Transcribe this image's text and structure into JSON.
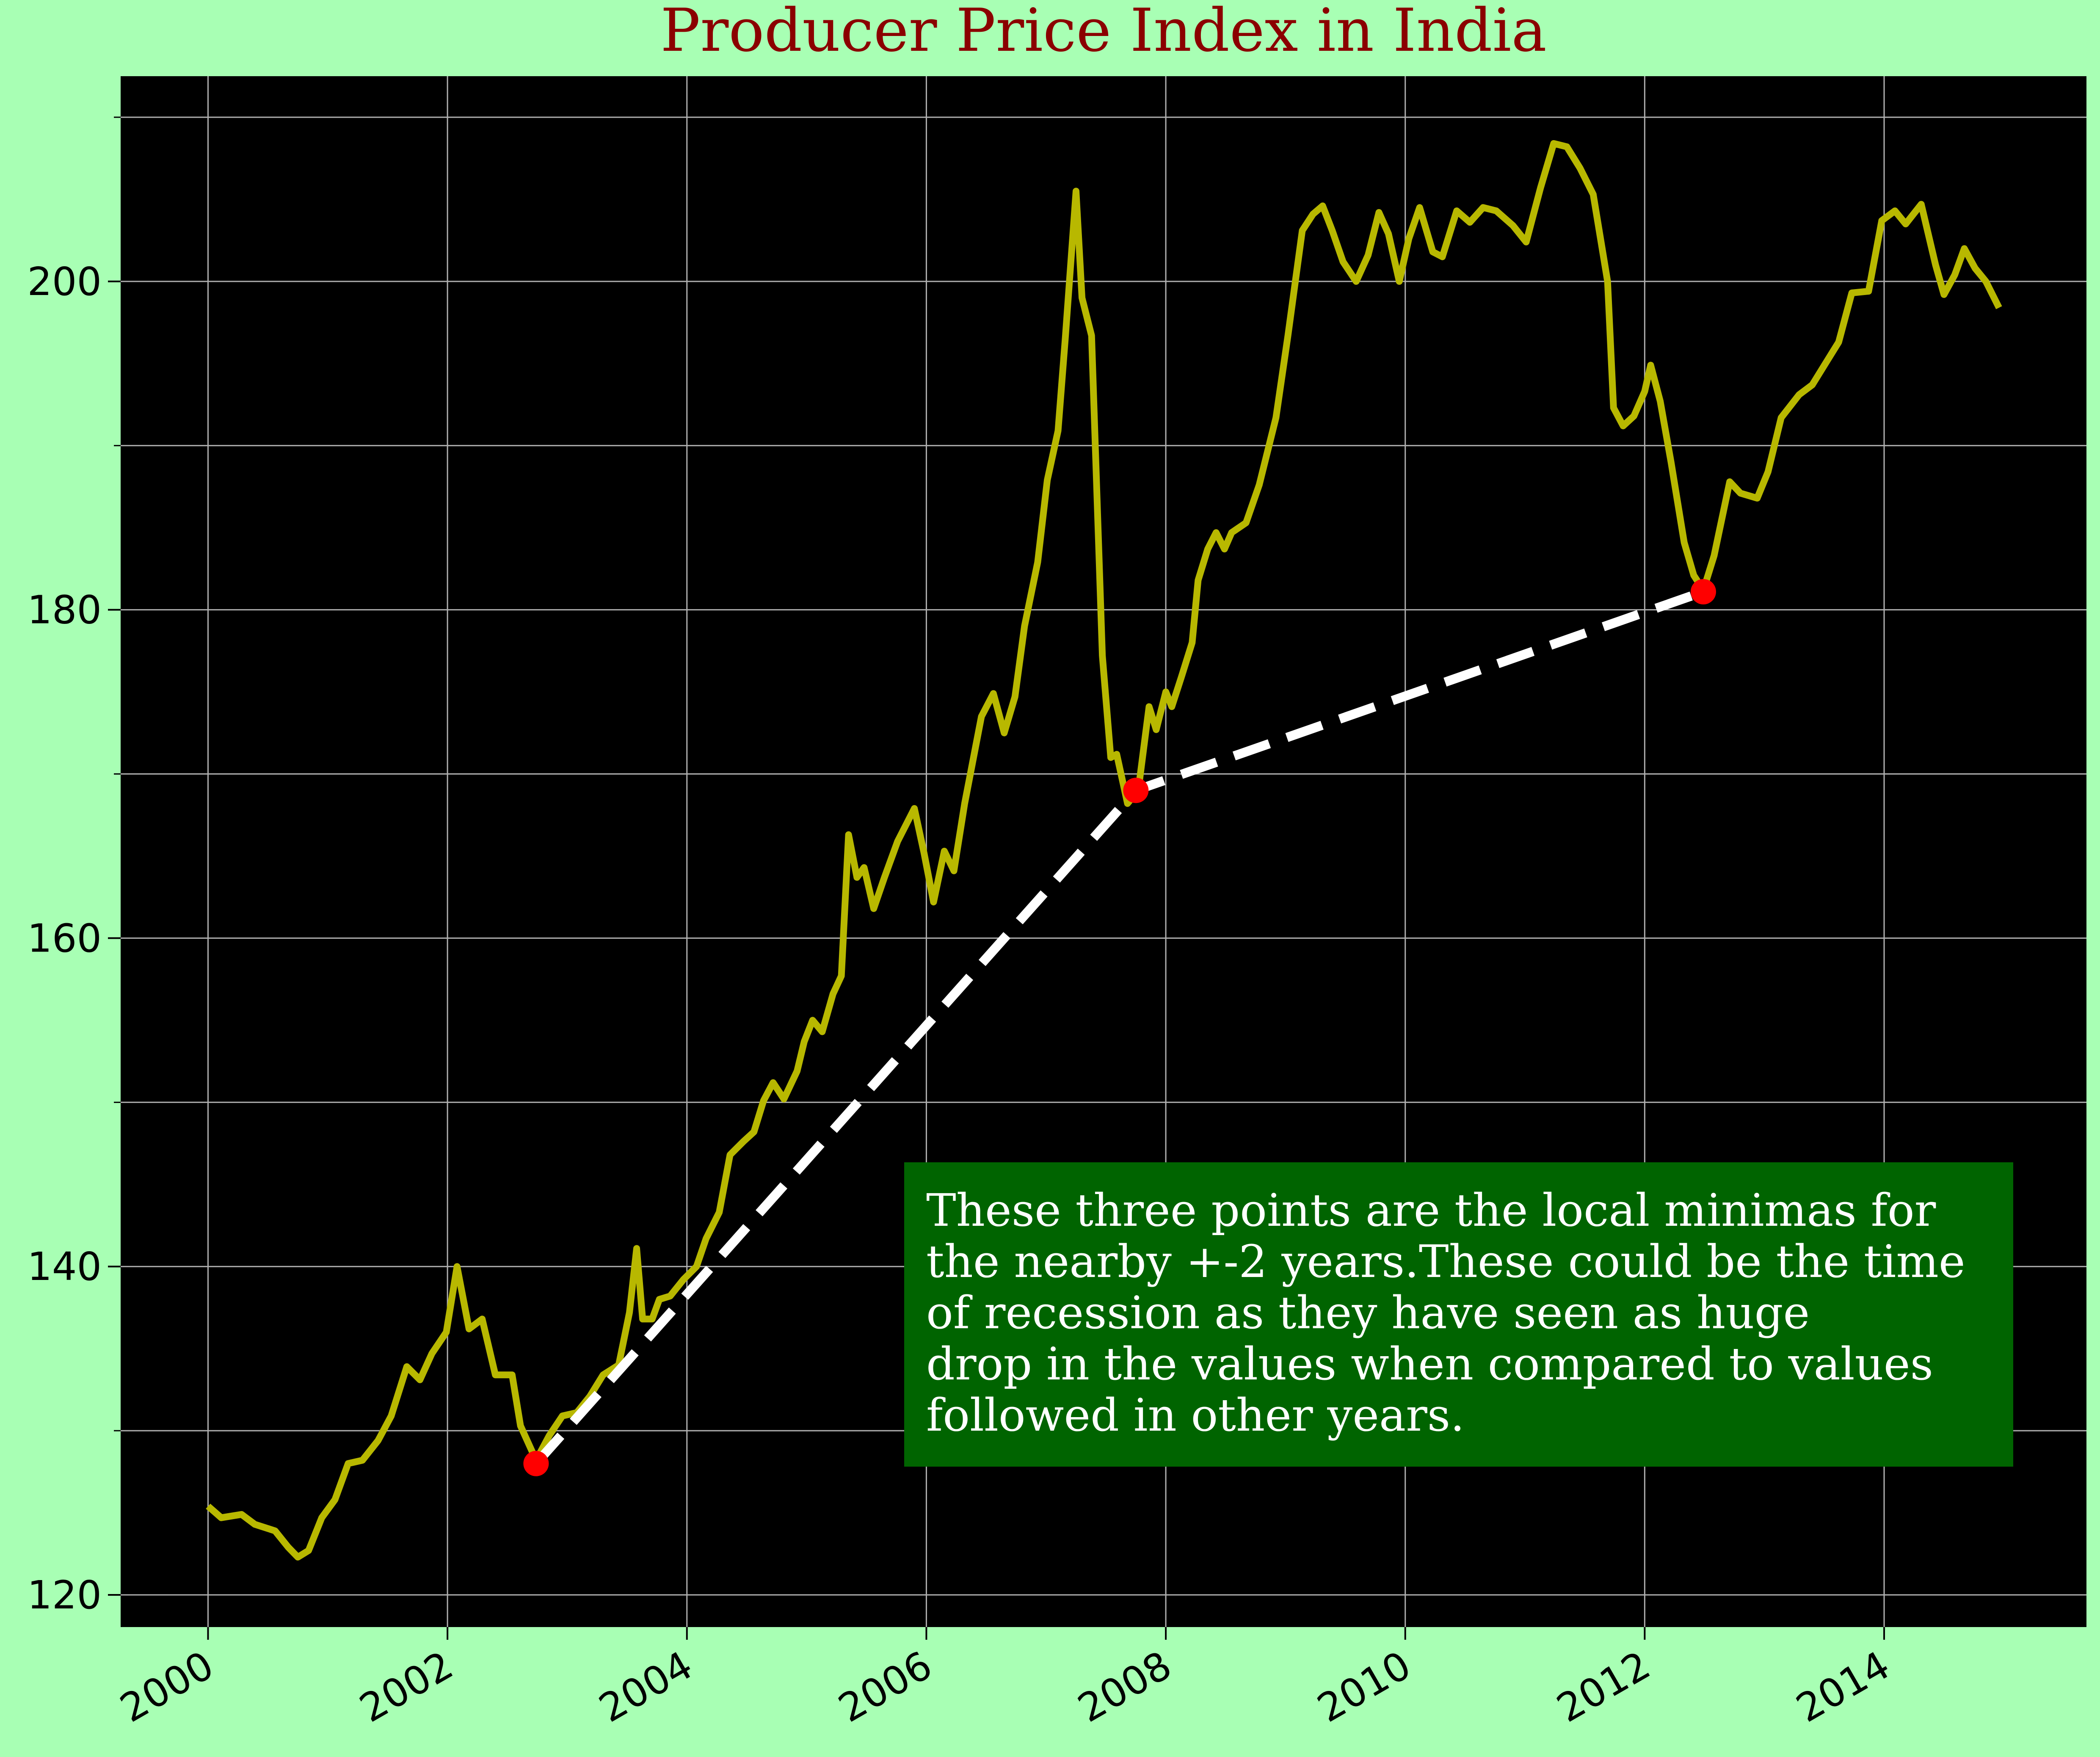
{
  "chart_data": {
    "type": "line",
    "title": "Producer Price Index in India",
    "x": [
      2000.0,
      2000.11,
      2000.28,
      2000.39,
      2000.56,
      2000.67,
      2000.75,
      2000.84,
      2000.95,
      2001.06,
      2001.17,
      2001.29,
      2001.42,
      2001.53,
      2001.66,
      2001.77,
      2001.87,
      2001.99,
      2002.08,
      2002.18,
      2002.29,
      2002.4,
      2002.54,
      2002.61,
      2002.74,
      2002.85,
      2002.96,
      2003.08,
      2003.19,
      2003.3,
      2003.43,
      2003.52,
      2003.58,
      2003.63,
      2003.71,
      2003.77,
      2003.86,
      2003.97,
      2004.08,
      2004.16,
      2004.27,
      2004.36,
      2004.47,
      2004.56,
      2004.64,
      2004.72,
      2004.81,
      2004.92,
      2004.98,
      2005.05,
      2005.13,
      2005.22,
      2005.29,
      2005.35,
      2005.42,
      2005.48,
      2005.56,
      2005.65,
      2005.76,
      2005.9,
      2005.98,
      2006.06,
      2006.15,
      2006.23,
      2006.32,
      2006.46,
      2006.56,
      2006.65,
      2006.74,
      2006.82,
      2006.93,
      2007.01,
      2007.1,
      2007.16,
      2007.25,
      2007.3,
      2007.38,
      2007.47,
      2007.54,
      2007.59,
      2007.68,
      2007.77,
      2007.86,
      2007.92,
      2008.0,
      2008.05,
      2008.13,
      2008.22,
      2008.27,
      2008.35,
      2008.42,
      2008.49,
      2008.55,
      2008.67,
      2008.78,
      2008.92,
      2009.02,
      2009.14,
      2009.23,
      2009.31,
      2009.39,
      2009.48,
      2009.59,
      2009.69,
      2009.78,
      2009.86,
      2009.95,
      2010.03,
      2010.12,
      2010.23,
      2010.31,
      2010.43,
      2010.54,
      2010.65,
      2010.76,
      2010.9,
      2011.01,
      2011.13,
      2011.24,
      2011.35,
      2011.46,
      2011.57,
      2011.69,
      2011.74,
      2011.82,
      2011.91,
      2012.0,
      2012.05,
      2012.13,
      2012.22,
      2012.33,
      2012.41,
      2012.49,
      2012.58,
      2012.71,
      2012.8,
      2012.94,
      2013.03,
      2013.14,
      2013.29,
      2013.4,
      2013.51,
      2013.62,
      2013.73,
      2013.87,
      2013.98,
      2014.09,
      2014.18,
      2014.31,
      2014.43,
      2014.5,
      2014.59,
      2014.67,
      2014.76,
      2014.85,
      2014.96
    ],
    "series": [
      {
        "color": "#b8b800",
        "values": [
          125.4,
          124.7,
          124.9,
          124.3,
          123.9,
          122.9,
          122.3,
          122.7,
          124.7,
          125.8,
          128.0,
          128.2,
          129.4,
          130.9,
          133.9,
          133.1,
          134.7,
          136.0,
          140.0,
          136.2,
          136.8,
          133.4,
          133.4,
          130.3,
          128.2,
          129.7,
          130.9,
          131.1,
          132.1,
          133.4,
          134.0,
          137.2,
          141.1,
          136.8,
          136.8,
          138.0,
          138.2,
          139.2,
          140.0,
          141.7,
          143.3,
          146.8,
          147.6,
          148.2,
          150.1,
          151.2,
          150.2,
          151.9,
          153.7,
          155.0,
          154.3,
          156.6,
          157.7,
          166.3,
          163.7,
          164.3,
          161.8,
          163.7,
          165.9,
          167.9,
          165.2,
          162.2,
          165.3,
          164.1,
          168.2,
          173.5,
          174.9,
          172.5,
          174.7,
          179.0,
          182.9,
          187.9,
          190.9,
          196.5,
          205.5,
          199.0,
          196.7,
          177.2,
          171.0,
          171.2,
          168.2,
          169.0,
          174.1,
          172.7,
          175.0,
          174.1,
          175.9,
          178.0,
          181.8,
          183.7,
          184.7,
          183.7,
          184.7,
          185.3,
          187.6,
          191.7,
          196.7,
          203.1,
          204.1,
          204.6,
          203.1,
          201.2,
          200.0,
          201.6,
          204.2,
          202.9,
          200.0,
          202.6,
          204.5,
          201.8,
          201.5,
          204.3,
          203.6,
          204.5,
          204.3,
          203.4,
          202.4,
          205.7,
          208.4,
          208.2,
          206.9,
          205.3,
          200.0,
          192.3,
          191.2,
          191.8,
          193.3,
          194.9,
          192.7,
          189.0,
          184.1,
          182.1,
          181.2,
          183.3,
          187.8,
          187.1,
          186.8,
          188.4,
          191.7,
          193.1,
          193.7,
          195.0,
          196.3,
          199.3,
          199.4,
          203.7,
          204.3,
          203.5,
          204.7,
          201.0,
          199.2,
          200.4,
          202.0,
          200.8,
          200.0,
          198.4
        ]
      }
    ],
    "highlights": {
      "x": [
        2002.74,
        2007.75,
        2012.49
      ],
      "values": [
        128.0,
        169.0,
        181.1
      ],
      "color": "#ff0000",
      "line_color": "#ffffff"
    },
    "annotation": [
      "These three points are the local minimas for",
      "the nearby +-2 years.These could be the time",
      "of recession as they have seen as huge",
      "drop in the values when compared to values",
      "followed in other years."
    ],
    "xlim": [
      1999.27,
      2015.69
    ],
    "xticks": [
      2000,
      2002,
      2004,
      2006,
      2008,
      2010,
      2012,
      2014
    ],
    "ylim": [
      118.04,
      212.5
    ],
    "yticks": [
      120,
      140,
      160,
      180,
      200
    ],
    "yminor": [
      130,
      150,
      170,
      190,
      210
    ],
    "grid": true
  }
}
